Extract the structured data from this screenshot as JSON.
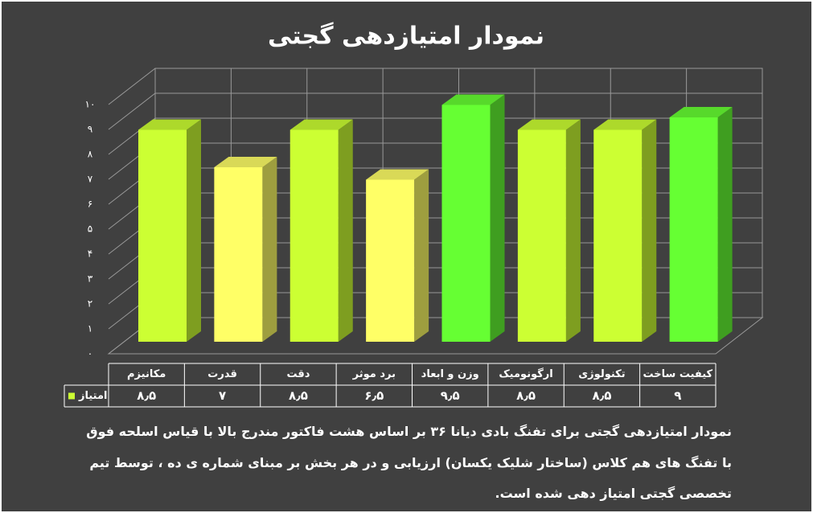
{
  "chart_data": {
    "type": "bar3d",
    "title": "نمودار امتیازدهی گجتی",
    "categories": [
      "مکانیزم",
      "قدرت",
      "دقت",
      "برد موثر",
      "وزن و ابعاد",
      "ارگونومیک",
      "تکنولوژی",
      "کیفیت ساخت"
    ],
    "series": [
      {
        "name": "امتیاز",
        "color": "#ccff33",
        "values": [
          8.5,
          7,
          8.5,
          6.5,
          9.5,
          8.5,
          8.5,
          9
        ],
        "value_labels": [
          "۸٫۵",
          "۷",
          "۸٫۵",
          "۶٫۵",
          "۹٫۵",
          "۸٫۵",
          "۸٫۵",
          "۹"
        ],
        "colors": [
          "#ccff33",
          "#ffff66",
          "#ccff33",
          "#ffff66",
          "#66ff33",
          "#ccff33",
          "#ccff33",
          "#66ff33"
        ]
      }
    ],
    "ylim": [
      0,
      10
    ],
    "yticks": [
      {
        "value": 0,
        "label": "۰"
      },
      {
        "value": 1,
        "label": "۱"
      },
      {
        "value": 2,
        "label": "۲"
      },
      {
        "value": 3,
        "label": "۳"
      },
      {
        "value": 4,
        "label": "۴"
      },
      {
        "value": 5,
        "label": "۵"
      },
      {
        "value": 6,
        "label": "۶"
      },
      {
        "value": 7,
        "label": "۷"
      },
      {
        "value": 8,
        "label": "۸"
      },
      {
        "value": 9,
        "label": "۹"
      },
      {
        "value": 10,
        "label": "۱۰"
      }
    ],
    "grid": true
  },
  "caption": [
    "نمودار امتیازدهی گجتی برای تفنگ بادی دیانا ۳۶ بر اساس هشت فاکتور مندرج بالا با قیاس اسلحه فوق",
    "با تفنگ های هم کلاس (ساختار شلیک یکسان) ارزیابی و در هر بخش بر مبنای شماره ی ده ، توسط تیم",
    "تخصصی گجتی امتیاز دهی شده است."
  ]
}
